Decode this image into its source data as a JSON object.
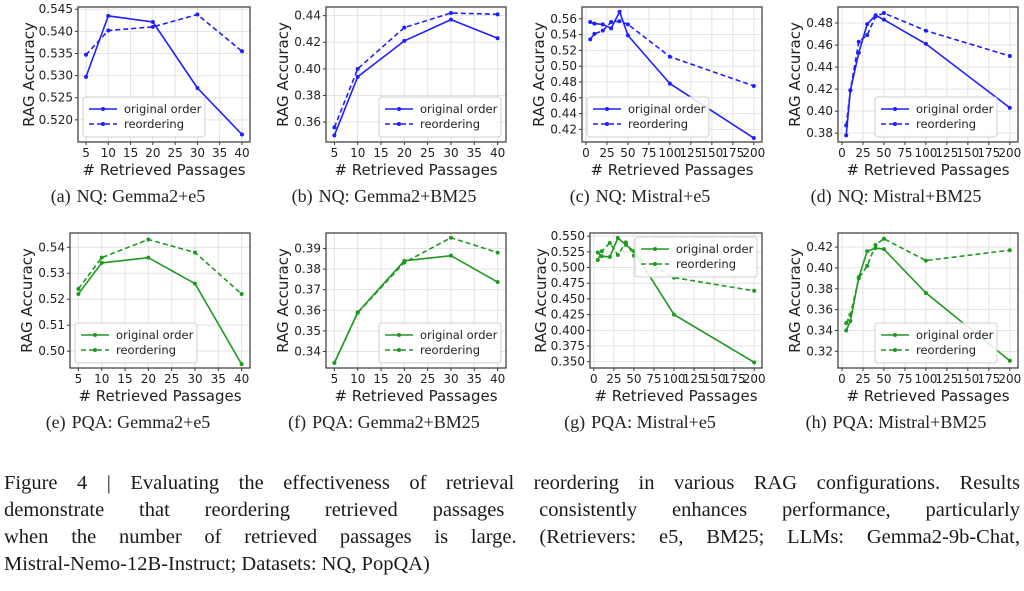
{
  "figure": {
    "caption_lines": [
      "Figure 4 | Evaluating the effectiveness of retrieval reordering in various RAG configurations. Results",
      "demonstrate that reordering retrieved passages consistently enhances performance, particularly",
      "when the number of retrieved passages is large. (Retrievers: e5, BM25; LLMs: Gemma2-9b-Chat,",
      "Mistral-Nemo-12B-Instruct; Datasets: NQ, PopQA)"
    ]
  },
  "colors": {
    "nq": "#1f1fff",
    "pqa": "#1f9a1f",
    "grid": "#e3e3e3",
    "axis": "#444444"
  },
  "chart_data": [
    {
      "id": "a",
      "subcaption_label": "(a)",
      "subcaption": "NQ: Gemma2+e5",
      "type": "line",
      "xlabel": "# Retrieved Passages",
      "ylabel": "RAG Accuracy",
      "grid": true,
      "legend": "bottom-left",
      "xlim": [
        3.2,
        41.8
      ],
      "ylim": [
        0.515,
        0.5455
      ],
      "xticks": [
        5,
        10,
        15,
        20,
        25,
        30,
        35,
        40
      ],
      "xtick_labels": [
        "5",
        "10",
        "15",
        "20",
        "25",
        "30",
        "35",
        "40"
      ],
      "yticks": [
        0.52,
        0.525,
        0.53,
        0.535,
        0.54,
        0.545
      ],
      "ytick_labels": [
        "0.520",
        "0.525",
        "0.530",
        "0.535",
        "0.540",
        "0.545"
      ],
      "series": [
        {
          "name": "original order",
          "style": "solid",
          "x": [
            5,
            10,
            20,
            30,
            40
          ],
          "y": [
            0.5297,
            0.5435,
            0.5421,
            0.5272,
            0.5167
          ]
        },
        {
          "name": "reordering",
          "style": "dashed",
          "x": [
            5,
            10,
            20,
            30,
            40
          ],
          "y": [
            0.5347,
            0.5402,
            0.541,
            0.5438,
            0.5355
          ]
        }
      ]
    },
    {
      "id": "b",
      "subcaption_label": "(b)",
      "subcaption": "NQ: Gemma2+BM25",
      "type": "line",
      "xlabel": "# Retrieved Passages",
      "ylabel": "RAG Accuracy",
      "grid": true,
      "legend": "bottom-right",
      "xlim": [
        3.2,
        41.8
      ],
      "ylim": [
        0.345,
        0.4465
      ],
      "xticks": [
        5,
        10,
        15,
        20,
        25,
        30,
        35,
        40
      ],
      "xtick_labels": [
        "5",
        "10",
        "15",
        "20",
        "25",
        "30",
        "35",
        "40"
      ],
      "yticks": [
        0.36,
        0.38,
        0.4,
        0.42,
        0.44
      ],
      "ytick_labels": [
        "0.36",
        "0.38",
        "0.40",
        "0.42",
        "0.44"
      ],
      "series": [
        {
          "name": "original order",
          "style": "solid",
          "x": [
            5,
            10,
            20,
            30,
            40
          ],
          "y": [
            0.35,
            0.394,
            0.421,
            0.437,
            0.423
          ]
        },
        {
          "name": "reordering",
          "style": "dashed",
          "x": [
            5,
            10,
            20,
            30,
            40
          ],
          "y": [
            0.356,
            0.4,
            0.431,
            0.442,
            0.441
          ]
        }
      ]
    },
    {
      "id": "c",
      "subcaption_label": "(c)",
      "subcaption": "NQ: Mistral+e5",
      "type": "line",
      "xlabel": "# Retrieved Passages",
      "ylabel": "RAG Accuracy",
      "grid": true,
      "legend": "bottom-left",
      "xlim": [
        -4.75,
        209.75
      ],
      "ylim": [
        0.404,
        0.575
      ],
      "xticks": [
        0,
        25,
        50,
        75,
        100,
        125,
        150,
        175,
        200
      ],
      "xtick_labels": [
        "0",
        "25",
        "50",
        "75",
        "100",
        "125",
        "150",
        "175",
        "200"
      ],
      "yticks": [
        0.42,
        0.44,
        0.46,
        0.48,
        0.5,
        0.52,
        0.54,
        0.56
      ],
      "ytick_labels": [
        "0.42",
        "0.44",
        "0.46",
        "0.48",
        "0.50",
        "0.52",
        "0.54",
        "0.56"
      ],
      "series": [
        {
          "name": "original order",
          "style": "solid",
          "x": [
            5,
            10,
            20,
            30,
            40,
            50,
            100,
            200
          ],
          "y": [
            0.556,
            0.554,
            0.553,
            0.548,
            0.569,
            0.539,
            0.478,
            0.409
          ]
        },
        {
          "name": "reordering",
          "style": "dashed",
          "x": [
            5,
            10,
            20,
            30,
            40,
            50,
            100,
            200
          ],
          "y": [
            0.534,
            0.541,
            0.545,
            0.556,
            0.557,
            0.553,
            0.512,
            0.475
          ]
        }
      ]
    },
    {
      "id": "d",
      "subcaption_label": "(d)",
      "subcaption": "NQ: Mistral+BM25",
      "type": "line",
      "xlabel": "# Retrieved Passages",
      "ylabel": "RAG Accuracy",
      "grid": true,
      "legend": "bottom-center",
      "xlim": [
        -4.75,
        209.75
      ],
      "ylim": [
        0.372,
        0.4945
      ],
      "xticks": [
        0,
        25,
        50,
        75,
        100,
        125,
        150,
        175,
        200
      ],
      "xtick_labels": [
        "0",
        "25",
        "50",
        "75",
        "100",
        "125",
        "150",
        "175",
        "200"
      ],
      "yticks": [
        0.38,
        0.4,
        0.42,
        0.44,
        0.46,
        0.48
      ],
      "ytick_labels": [
        "0.38",
        "0.40",
        "0.42",
        "0.44",
        "0.46",
        "0.48"
      ],
      "series": [
        {
          "name": "original order",
          "style": "solid",
          "x": [
            5,
            10,
            20,
            30,
            40,
            50,
            100,
            200
          ],
          "y": [
            0.378,
            0.419,
            0.453,
            0.479,
            0.487,
            0.483,
            0.461,
            0.403
          ]
        },
        {
          "name": "reordering",
          "style": "dashed",
          "x": [
            5,
            10,
            20,
            30,
            40,
            50,
            100,
            200
          ],
          "y": [
            0.387,
            0.419,
            0.463,
            0.469,
            0.486,
            0.489,
            0.473,
            0.45
          ]
        }
      ]
    },
    {
      "id": "e",
      "subcaption_label": "(e)",
      "subcaption": "PQA: Gemma2+e5",
      "type": "line",
      "xlabel": "# Retrieved Passages",
      "ylabel": "RAG Accuracy",
      "grid": true,
      "legend": "bottom-left",
      "xlim": [
        3.2,
        41.8
      ],
      "ylim": [
        0.4935,
        0.5455
      ],
      "xticks": [
        5,
        10,
        15,
        20,
        25,
        30,
        35,
        40
      ],
      "xtick_labels": [
        "5",
        "10",
        "15",
        "20",
        "25",
        "30",
        "35",
        "40"
      ],
      "yticks": [
        0.5,
        0.51,
        0.52,
        0.53,
        0.54
      ],
      "ytick_labels": [
        "0.50",
        "0.51",
        "0.52",
        "0.53",
        "0.54"
      ],
      "series": [
        {
          "name": "original order",
          "style": "solid",
          "x": [
            5,
            10,
            20,
            30,
            40
          ],
          "y": [
            0.522,
            0.534,
            0.536,
            0.526,
            0.495
          ]
        },
        {
          "name": "reordering",
          "style": "dashed",
          "x": [
            5,
            10,
            20,
            30,
            40
          ],
          "y": [
            0.524,
            0.536,
            0.543,
            0.538,
            0.522
          ]
        }
      ]
    },
    {
      "id": "f",
      "subcaption_label": "(f)",
      "subcaption": "PQA: Gemma2+BM25",
      "type": "line",
      "xlabel": "# Retrieved Passages",
      "ylabel": "RAG Accuracy",
      "grid": true,
      "legend": "bottom-right",
      "xlim": [
        3.2,
        41.8
      ],
      "ylim": [
        0.332,
        0.3975
      ],
      "xticks": [
        5,
        10,
        15,
        20,
        25,
        30,
        35,
        40
      ],
      "xtick_labels": [
        "5",
        "10",
        "15",
        "20",
        "25",
        "30",
        "35",
        "40"
      ],
      "yticks": [
        0.34,
        0.35,
        0.36,
        0.37,
        0.38,
        0.39
      ],
      "ytick_labels": [
        "0.34",
        "0.35",
        "0.36",
        "0.37",
        "0.38",
        "0.39"
      ],
      "series": [
        {
          "name": "original order",
          "style": "solid",
          "x": [
            5,
            10,
            20,
            30,
            40
          ],
          "y": [
            0.3345,
            0.359,
            0.384,
            0.3865,
            0.3737
          ]
        },
        {
          "name": "reordering",
          "style": "dashed",
          "x": [
            5,
            10,
            20,
            30,
            40
          ],
          "y": [
            0.3345,
            0.3588,
            0.3832,
            0.3952,
            0.388
          ]
        }
      ]
    },
    {
      "id": "g",
      "subcaption_label": "(g)",
      "subcaption": "PQA: Mistral+e5",
      "type": "line",
      "xlabel": "# Retrieved Passages",
      "ylabel": "RAG Accuracy",
      "grid": true,
      "legend": "top-right",
      "xlim": [
        -4.75,
        209.75
      ],
      "ylim": [
        0.34,
        0.555
      ],
      "xticks": [
        0,
        25,
        50,
        75,
        100,
        125,
        150,
        175,
        200
      ],
      "xtick_labels": [
        "0",
        "25",
        "50",
        "75",
        "100",
        "125",
        "150",
        "175",
        "200"
      ],
      "yticks": [
        0.35,
        0.375,
        0.4,
        0.425,
        0.45,
        0.475,
        0.5,
        0.525,
        0.55
      ],
      "ytick_labels": [
        "0.350",
        "0.375",
        "0.400",
        "0.425",
        "0.450",
        "0.475",
        "0.500",
        "0.525",
        "0.550"
      ],
      "series": [
        {
          "name": "original order",
          "style": "solid",
          "x": [
            5,
            10,
            20,
            30,
            40,
            50,
            100,
            200
          ],
          "y": [
            0.524,
            0.518,
            0.517,
            0.547,
            0.536,
            0.526,
            0.425,
            0.349
          ]
        },
        {
          "name": "reordering",
          "style": "dashed",
          "x": [
            5,
            10,
            20,
            30,
            40,
            50,
            100,
            200
          ],
          "y": [
            0.512,
            0.526,
            0.539,
            0.52,
            0.54,
            0.519,
            0.484,
            0.463
          ]
        }
      ]
    },
    {
      "id": "h",
      "subcaption_label": "(h)",
      "subcaption": "PQA: Mistral+BM25",
      "type": "line",
      "xlabel": "# Retrieved Passages",
      "ylabel": "RAG Accuracy",
      "grid": true,
      "legend": "bottom-center",
      "xlim": [
        -4.75,
        209.75
      ],
      "ylim": [
        0.304,
        0.4335
      ],
      "xticks": [
        0,
        25,
        50,
        75,
        100,
        125,
        150,
        175,
        200
      ],
      "xtick_labels": [
        "0",
        "25",
        "50",
        "75",
        "100",
        "125",
        "150",
        "175",
        "200"
      ],
      "yticks": [
        0.32,
        0.34,
        0.36,
        0.38,
        0.4,
        0.42
      ],
      "ytick_labels": [
        "0.32",
        "0.34",
        "0.36",
        "0.38",
        "0.40",
        "0.42"
      ],
      "series": [
        {
          "name": "original order",
          "style": "solid",
          "x": [
            5,
            10,
            20,
            30,
            40,
            50,
            100,
            200
          ],
          "y": [
            0.34,
            0.349,
            0.391,
            0.416,
            0.419,
            0.418,
            0.376,
            0.311
          ]
        },
        {
          "name": "reordering",
          "style": "dashed",
          "x": [
            5,
            10,
            20,
            30,
            40,
            50,
            100,
            200
          ],
          "y": [
            0.347,
            0.355,
            0.39,
            0.402,
            0.422,
            0.428,
            0.407,
            0.417
          ]
        }
      ]
    }
  ]
}
